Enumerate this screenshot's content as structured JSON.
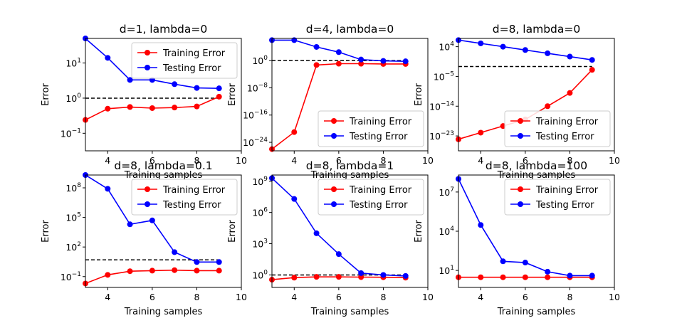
{
  "chart_data": [
    {
      "type": "line",
      "title": "d=1, lambda=0",
      "xlabel": "Training samples",
      "ylabel": "Error",
      "xlim": [
        3,
        10
      ],
      "xticks": [
        4,
        6,
        8,
        10
      ],
      "yscale": "log",
      "ylim_exp": [
        -1.5,
        1.7
      ],
      "yticks": [
        {
          "exp": -1,
          "label": "10"
        },
        {
          "exp": 0,
          "label": "10"
        },
        {
          "exp": 1,
          "label": "10"
        }
      ],
      "ytick_exps": [
        "−1",
        "0",
        "1"
      ],
      "x": [
        3,
        4,
        5,
        6,
        7,
        8,
        9
      ],
      "series": [
        {
          "name": "Training Error",
          "color": "#ff0000",
          "values": [
            0.24,
            0.5,
            0.56,
            0.52,
            0.54,
            0.58,
            1.1
          ]
        },
        {
          "name": "Testing Error",
          "color": "#0000ff",
          "values": [
            50,
            14,
            3.3,
            3.3,
            2.5,
            1.95,
            1.9
          ]
        }
      ],
      "reference": 1.0,
      "legend": "top-right"
    },
    {
      "type": "line",
      "title": "d=4, lambda=0",
      "xlabel": "Training samples",
      "ylabel": "Error",
      "xlim": [
        3,
        10
      ],
      "xticks": [
        4,
        6,
        8,
        10
      ],
      "yscale": "log",
      "ylim_exp": [
        -26.5,
        6.5
      ],
      "yticks": [
        {
          "exp": -24,
          "label": "10"
        },
        {
          "exp": -16,
          "label": "10"
        },
        {
          "exp": -8,
          "label": "10"
        },
        {
          "exp": 0,
          "label": "10"
        }
      ],
      "ytick_exps": [
        "−24",
        "−16",
        "−8",
        "0"
      ],
      "x": [
        3,
        4,
        5,
        6,
        7,
        8,
        9
      ],
      "series": [
        {
          "name": "Training Error",
          "color": "#ff0000",
          "values": [
            1e-26,
            1e-21,
            0.05,
            0.12,
            0.12,
            0.1,
            0.1
          ]
        },
        {
          "name": "Testing Error",
          "color": "#0000ff",
          "values": [
            1000000.0,
            1000000.0,
            10000.0,
            300.0,
            2,
            0.8,
            0.6
          ]
        }
      ],
      "reference": 1.0,
      "legend": "bottom-right"
    },
    {
      "type": "line",
      "title": "d=8, lambda=0",
      "xlabel": "Training samples",
      "ylabel": "Error",
      "xlim": [
        3,
        10
      ],
      "xticks": [
        4,
        6,
        8,
        10
      ],
      "yscale": "log",
      "ylim_exp": [
        -27.5,
        6.5
      ],
      "yticks": [
        {
          "exp": -23,
          "label": "10"
        },
        {
          "exp": -14,
          "label": "10"
        },
        {
          "exp": -5,
          "label": "10"
        },
        {
          "exp": 4,
          "label": "10"
        }
      ],
      "ytick_exps": [
        "−23",
        "−14",
        "−5",
        "4"
      ],
      "x": [
        3,
        4,
        5,
        6,
        7,
        8,
        9
      ],
      "series": [
        {
          "name": "Training Error",
          "color": "#ff0000",
          "values": [
            1e-24,
            1e-22,
            1e-20,
            1e-18,
            1e-14,
            1e-10,
            0.001
          ]
        },
        {
          "name": "Testing Error",
          "color": "#0000ff",
          "values": [
            1000000.0,
            100000.0,
            10000.0,
            1000.0,
            100.0,
            10.0,
            1.0
          ]
        }
      ],
      "reference": 0.01,
      "legend": "bottom-right"
    },
    {
      "type": "line",
      "title": "d=8, lambda=0.1",
      "xlabel": "Training samples",
      "ylabel": "Error",
      "xlim": [
        3,
        10
      ],
      "xticks": [
        4,
        6,
        8,
        10
      ],
      "yscale": "log",
      "ylim_exp": [
        -2.1,
        9.3
      ],
      "yticks": [
        {
          "exp": -1,
          "label": "10"
        },
        {
          "exp": 2,
          "label": "10"
        },
        {
          "exp": 5,
          "label": "10"
        },
        {
          "exp": 8,
          "label": "10"
        }
      ],
      "ytick_exps": [
        "−1",
        "2",
        "5",
        "8"
      ],
      "x": [
        3,
        4,
        5,
        6,
        7,
        8,
        9
      ],
      "series": [
        {
          "name": "Training Error",
          "color": "#ff0000",
          "values": [
            0.02,
            0.15,
            0.35,
            0.4,
            0.45,
            0.4,
            0.4
          ]
        },
        {
          "name": "Testing Error",
          "color": "#0000ff",
          "values": [
            2000000000.0,
            80000000.0,
            20000.0,
            50000.0,
            30,
            3,
            3
          ]
        }
      ],
      "reference": 5.0,
      "legend": "top-right"
    },
    {
      "type": "line",
      "title": "d=8, lambda=1",
      "xlabel": "Training samples",
      "ylabel": "Error",
      "xlim": [
        3,
        10
      ],
      "xticks": [
        4,
        6,
        8,
        10
      ],
      "yscale": "log",
      "ylim_exp": [
        -1.2,
        9.6
      ],
      "yticks": [
        {
          "exp": 0,
          "label": "10"
        },
        {
          "exp": 3,
          "label": "10"
        },
        {
          "exp": 6,
          "label": "10"
        },
        {
          "exp": 9,
          "label": "10"
        }
      ],
      "ytick_exps": [
        "0",
        "3",
        "6",
        "9"
      ],
      "x": [
        3,
        4,
        5,
        6,
        7,
        8,
        9
      ],
      "series": [
        {
          "name": "Training Error",
          "color": "#ff0000",
          "values": [
            0.35,
            0.55,
            0.65,
            0.65,
            0.62,
            0.6,
            0.55
          ]
        },
        {
          "name": "Testing Error",
          "color": "#0000ff",
          "values": [
            2000000000.0,
            20000000.0,
            10000.0,
            100,
            1.5,
            1.0,
            0.8
          ]
        }
      ],
      "reference": 1.0,
      "legend": "top-right"
    },
    {
      "type": "line",
      "title": "d=8, lambda=100",
      "xlabel": "Training samples",
      "ylabel": "Error",
      "xlim": [
        3,
        10
      ],
      "xticks": [
        4,
        6,
        8,
        10
      ],
      "yscale": "log",
      "ylim_exp": [
        -0.3,
        8.3
      ],
      "yticks": [
        {
          "exp": 1,
          "label": "10"
        },
        {
          "exp": 4,
          "label": "10"
        },
        {
          "exp": 7,
          "label": "10"
        }
      ],
      "ytick_exps": [
        "1",
        "4",
        "7"
      ],
      "x": [
        3,
        4,
        5,
        6,
        7,
        8,
        9
      ],
      "series": [
        {
          "name": "Training Error",
          "color": "#ff0000",
          "values": [
            3,
            3,
            3,
            3,
            3,
            3,
            3
          ]
        },
        {
          "name": "Testing Error",
          "color": "#0000ff",
          "values": [
            100000000.0,
            30000.0,
            50,
            40,
            8,
            4,
            4
          ]
        }
      ],
      "reference": 3.0,
      "legend": "top-right"
    }
  ]
}
